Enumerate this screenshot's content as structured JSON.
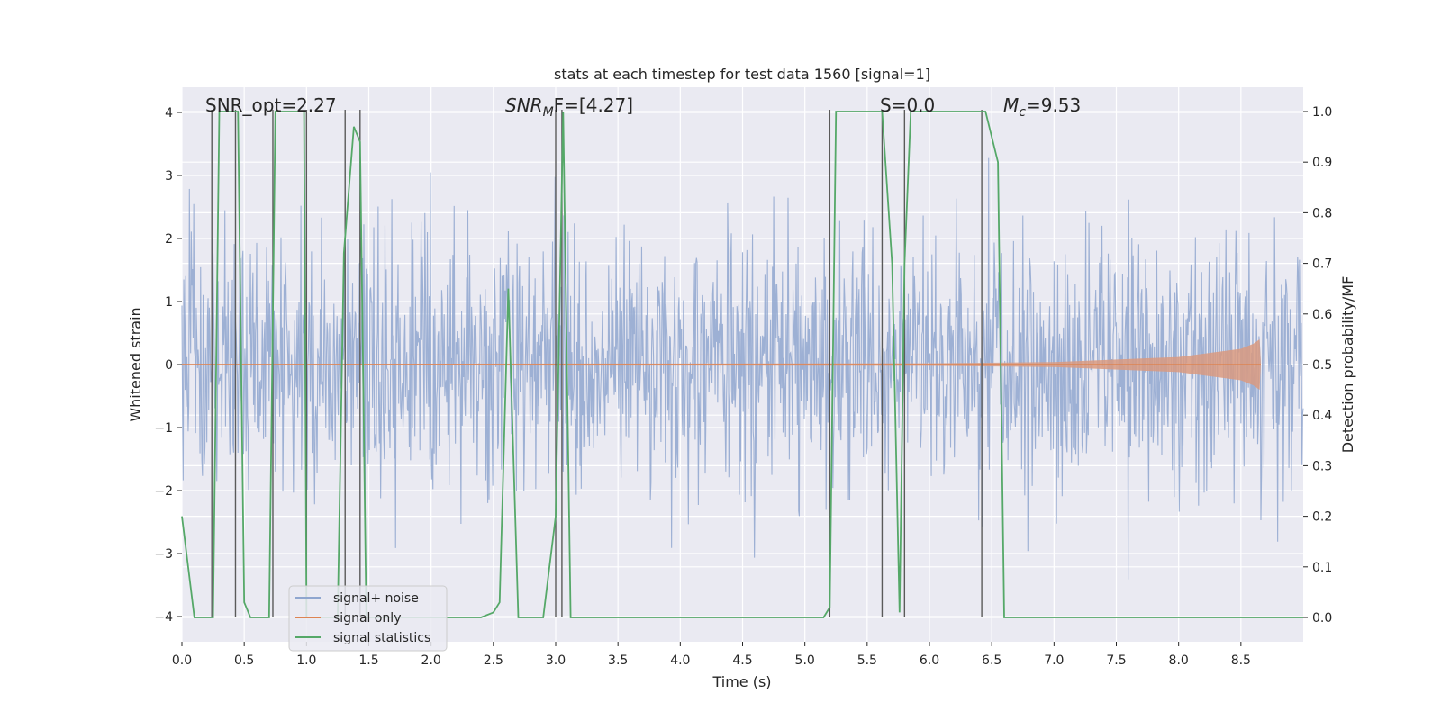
{
  "chart_data": {
    "type": "line",
    "title": "stats at each timestep for test data 1560 [signal=1]",
    "xlabel": "Time (s)",
    "ylabel_left": "Whitened strain",
    "ylabel_right": "Detection probability/MF",
    "xlim": [
      0.0,
      9.0
    ],
    "ylim_left": [
      -4.4,
      4.4
    ],
    "ylim_right": [
      -0.048,
      1.048
    ],
    "x_ticks": [
      "0.0",
      "0.5",
      "1.0",
      "1.5",
      "2.0",
      "2.5",
      "3.0",
      "3.5",
      "4.0",
      "4.5",
      "5.0",
      "5.5",
      "6.0",
      "6.5",
      "7.0",
      "7.5",
      "8.0",
      "8.5"
    ],
    "y_ticks_left": [
      "4",
      "3",
      "2",
      "1",
      "0",
      "−1",
      "−2",
      "−3",
      "−4"
    ],
    "y_ticks_right": [
      "1.0",
      "0.9",
      "0.8",
      "0.7",
      "0.6",
      "0.5",
      "0.4",
      "0.3",
      "0.2",
      "0.1",
      "0.0"
    ],
    "annotations": {
      "snr_opt": "SNR_opt=2.27",
      "snr_mf": "SNR",
      "snr_mf_sub": "M",
      "snr_mf_rest": "F=[4.27]",
      "s_label": "S=0.0",
      "mc": "M",
      "mc_sub": "c",
      "mc_rest": "=9.53"
    },
    "legend": {
      "placement": "lower-left",
      "entries": [
        "signal+ noise",
        "signal only",
        "signal statistics"
      ]
    },
    "grid": true,
    "colors": {
      "noise": "#8fa6cf",
      "signal": "#dd8452",
      "signal_fill": "#d99a80",
      "stats": "#55a868",
      "vlines": "#5a5a5a",
      "axes_bg": "#eaeaf2",
      "grid": "#ffffff"
    },
    "series": [
      {
        "name": "signal statistics",
        "axis": "right",
        "x": [
          0.0,
          0.05,
          0.1,
          0.2,
          0.25,
          0.3,
          0.42,
          0.45,
          0.5,
          0.55,
          0.6,
          0.7,
          0.75,
          0.8,
          0.9,
          0.98,
          1.0,
          1.05,
          1.1,
          1.2,
          1.25,
          1.3,
          1.38,
          1.43,
          1.48,
          1.5,
          1.6,
          2.0,
          2.4,
          2.5,
          2.55,
          2.62,
          2.7,
          2.75,
          2.9,
          3.0,
          3.06,
          3.12,
          3.18,
          3.5,
          4.0,
          4.5,
          5.0,
          5.15,
          5.2,
          5.25,
          5.3,
          5.5,
          5.62,
          5.7,
          5.76,
          5.8,
          5.85,
          5.9,
          6.0,
          6.2,
          6.4,
          6.45,
          6.55,
          6.6,
          7.0,
          8.0,
          9.0
        ],
        "y": [
          0.2,
          0.1,
          0.0,
          0.0,
          0.0,
          1.0,
          1.0,
          1.0,
          0.03,
          0.0,
          0.0,
          0.0,
          1.0,
          1.0,
          1.0,
          1.0,
          0.0,
          0.0,
          0.0,
          0.0,
          0.0,
          0.72,
          0.97,
          0.94,
          0.0,
          0.0,
          0.0,
          0.0,
          0.0,
          0.01,
          0.03,
          0.65,
          0.0,
          0.0,
          0.0,
          0.2,
          1.0,
          0.0,
          0.0,
          0.0,
          0.0,
          0.0,
          0.0,
          0.0,
          0.02,
          1.0,
          1.0,
          1.0,
          1.0,
          0.7,
          0.01,
          0.7,
          1.0,
          1.0,
          1.0,
          1.0,
          1.0,
          1.0,
          0.9,
          0.0,
          0.0,
          0.0,
          0.0
        ]
      },
      {
        "name": "signal only",
        "axis": "left",
        "description_of_envelope": [
          [
            0.0,
            0.01
          ],
          [
            6.0,
            0.02
          ],
          [
            7.0,
            0.04
          ],
          [
            8.0,
            0.12
          ],
          [
            8.5,
            0.25
          ],
          [
            8.6,
            0.33
          ],
          [
            8.65,
            0.4
          ],
          [
            8.66,
            0.0
          ]
        ]
      },
      {
        "name": "signal+ noise",
        "axis": "left",
        "band_std": 1.0,
        "band_range": [
          -4.0,
          4.0
        ]
      }
    ],
    "vlines_x": [
      0.24,
      0.43,
      0.73,
      1.0,
      1.31,
      1.43,
      3.0,
      3.05,
      5.2,
      5.62,
      5.8,
      6.42
    ]
  }
}
